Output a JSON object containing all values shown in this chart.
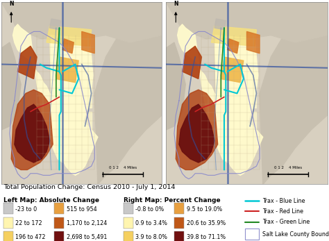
{
  "title": "Total Population Change: Census 2010 - July 1, 2014",
  "left_map_label": "Left Map: Absolute Change",
  "right_map_label": "Right Map: Percent Change",
  "left_legend": [
    {
      "label": "-23 to 0",
      "color": "#c8c8c8"
    },
    {
      "label": "22 to 172",
      "color": "#fff5b0"
    },
    {
      "label": "196 to 472",
      "color": "#f5d060"
    },
    {
      "label": "515 to 954",
      "color": "#e8a040"
    },
    {
      "label": "1,170 to 2,124",
      "color": "#c05818"
    },
    {
      "label": "2,698 to 5,491",
      "color": "#701010"
    }
  ],
  "right_legend": [
    {
      "label": "-0.8 to 0%",
      "color": "#c8c8c8"
    },
    {
      "label": "0.9 to 3.4%",
      "color": "#fff5b0"
    },
    {
      "label": "3.9 to 8.0%",
      "color": "#f5d060"
    },
    {
      "label": "9.5 to 19.0%",
      "color": "#e8a040"
    },
    {
      "label": "20.6 to 35.9%",
      "color": "#c05818"
    },
    {
      "label": "39.8 to 71.1%",
      "color": "#701010"
    }
  ],
  "line_legend": [
    {
      "label": "Trax - Blue Line",
      "color": "#00c8d4",
      "lw": 1.8,
      "fill": false
    },
    {
      "label": "Trax - Red Line",
      "color": "#cc2222",
      "lw": 1.5,
      "fill": false
    },
    {
      "label": "Trax - Green Line",
      "color": "#228822",
      "lw": 1.5,
      "fill": false
    },
    {
      "label": "Salt Lake County Boundary",
      "color": "#9090cc",
      "lw": 1.0,
      "fill": true
    }
  ],
  "terrain_color": "#d8d0c0",
  "hillshade_color": "#c0b8a8",
  "water_color": "#a8c8e0",
  "fig_bg": "#ffffff",
  "map_border_color": "#888888",
  "title_fontsize": 6.8,
  "label_fontsize": 6.5,
  "legend_fontsize": 5.8,
  "colors": {
    "light_yellow": "#fffacc",
    "yellow": "#f5e080",
    "orange_light": "#f0b84a",
    "orange": "#d87828",
    "brown": "#b04010",
    "dark_brown": "#6a1010",
    "gray": "#c0bab0"
  }
}
